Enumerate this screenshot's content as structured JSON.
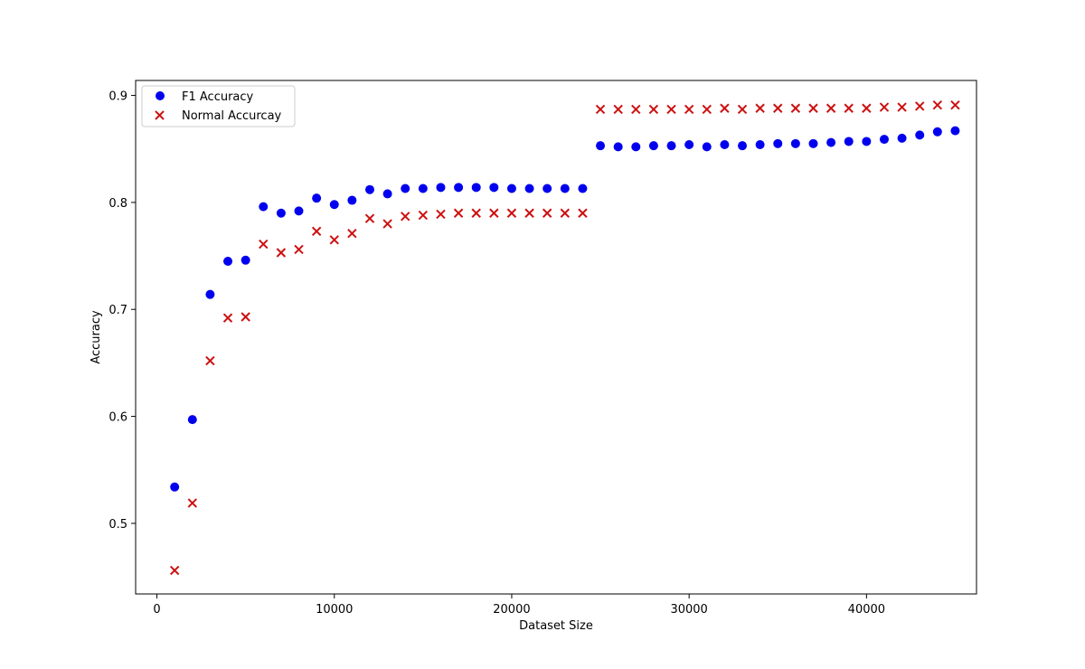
{
  "chart_data": {
    "type": "scatter",
    "title": "",
    "xlabel": "Dataset Size",
    "ylabel": "Accuracy",
    "xlim": [
      -1200,
      46200
    ],
    "ylim": [
      0.434,
      0.914
    ],
    "xticks": [
      0,
      10000,
      20000,
      30000,
      40000
    ],
    "xtick_labels": [
      "0",
      "10000",
      "20000",
      "30000",
      "40000"
    ],
    "yticks": [
      0.5,
      0.6,
      0.7,
      0.8,
      0.9
    ],
    "ytick_labels": [
      "0.5",
      "0.6",
      "0.7",
      "0.8",
      "0.9"
    ],
    "grid": false,
    "legend_position": "top-left",
    "x": [
      1000,
      2000,
      3000,
      4000,
      5000,
      6000,
      7000,
      8000,
      9000,
      10000,
      11000,
      12000,
      13000,
      14000,
      15000,
      16000,
      17000,
      18000,
      19000,
      20000,
      21000,
      22000,
      23000,
      24000,
      25000,
      26000,
      27000,
      28000,
      29000,
      30000,
      31000,
      32000,
      33000,
      34000,
      35000,
      36000,
      37000,
      38000,
      39000,
      40000,
      41000,
      42000,
      43000,
      44000,
      45000
    ],
    "series": [
      {
        "name": "F1 Accuracy",
        "marker": "circle",
        "color": "#0000ee",
        "values": [
          0.534,
          0.597,
          0.714,
          0.745,
          0.746,
          0.796,
          0.79,
          0.792,
          0.804,
          0.798,
          0.802,
          0.812,
          0.808,
          0.813,
          0.813,
          0.814,
          0.814,
          0.814,
          0.814,
          0.813,
          0.813,
          0.813,
          0.813,
          0.813,
          0.853,
          0.852,
          0.852,
          0.853,
          0.853,
          0.854,
          0.852,
          0.854,
          0.853,
          0.854,
          0.855,
          0.855,
          0.855,
          0.856,
          0.857,
          0.857,
          0.859,
          0.86,
          0.863,
          0.866,
          0.867
        ]
      },
      {
        "name": "Normal Accurcay",
        "marker": "x",
        "color": "#cc1111",
        "values": [
          0.456,
          0.519,
          0.652,
          0.692,
          0.693,
          0.761,
          0.753,
          0.756,
          0.773,
          0.765,
          0.771,
          0.785,
          0.78,
          0.787,
          0.788,
          0.789,
          0.79,
          0.79,
          0.79,
          0.79,
          0.79,
          0.79,
          0.79,
          0.79,
          0.887,
          0.887,
          0.887,
          0.887,
          0.887,
          0.887,
          0.887,
          0.888,
          0.887,
          0.888,
          0.888,
          0.888,
          0.888,
          0.888,
          0.888,
          0.888,
          0.889,
          0.889,
          0.89,
          0.891,
          0.891
        ]
      }
    ]
  }
}
